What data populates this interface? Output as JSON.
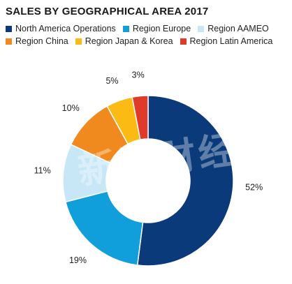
{
  "chart_data": {
    "type": "donut",
    "title": "SALES BY GEOGRAPHICAL AREA 2017",
    "categories": [
      "North America Operations",
      "Region Europe",
      "Region AAMEO",
      "Region China",
      "Region Japan & Korea",
      "Region Latin America"
    ],
    "values": [
      52,
      19,
      11,
      10,
      5,
      3
    ],
    "labels": [
      "52%",
      "19%",
      "11%",
      "10%",
      "5%",
      "3%"
    ],
    "colors": [
      "#0a3a7a",
      "#119fdb",
      "#c7e6f6",
      "#f08a1e",
      "#fbbb14",
      "#e03a2b"
    ],
    "legend_position": "top"
  },
  "watermark": "新浪财经"
}
